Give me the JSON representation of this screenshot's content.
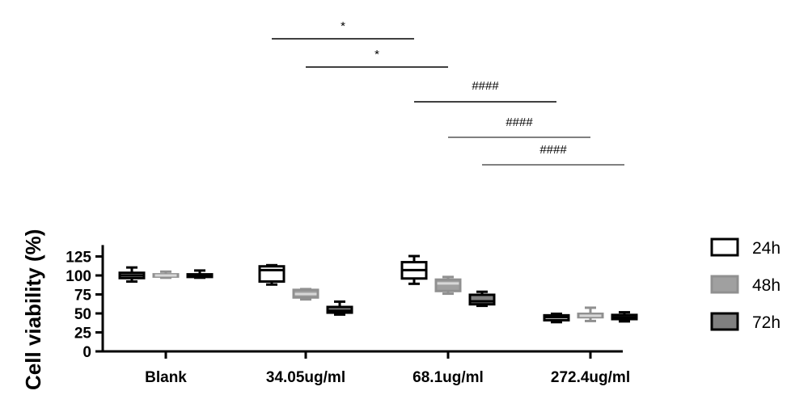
{
  "chart_data": {
    "type": "box",
    "title": "",
    "xlabel": "",
    "ylabel": "Cell viability (%)",
    "ylim": [
      0,
      140
    ],
    "yticks": [
      "0",
      "25",
      "50",
      "75",
      "100",
      "125"
    ],
    "categories": [
      "Blank",
      "34.05ug/ml",
      "68.1ug/ml",
      "272.4ug/ml"
    ],
    "legend_position": "right",
    "series": [
      {
        "name": "24h",
        "fill": "#ffffff",
        "stroke": "#000000",
        "median_color": "#000000",
        "boxes": [
          {
            "min": 92,
            "q1": 96.5,
            "median": 100,
            "q3": 103.5,
            "max": 110.5
          },
          {
            "min": 88,
            "q1": 92,
            "median": 107,
            "q3": 112,
            "max": 113.5
          },
          {
            "min": 89,
            "q1": 96,
            "median": 107,
            "q3": 117.5,
            "max": 125.5
          },
          {
            "min": 38.5,
            "q1": 41,
            "median": 45,
            "q3": 47.5,
            "max": 49.5
          }
        ]
      },
      {
        "name": "48h",
        "fill": "#a0a0a0",
        "stroke": "#909090",
        "median_color": "#d8d8d8",
        "boxes": [
          {
            "min": 97,
            "q1": 98.5,
            "median": 100,
            "q3": 101.5,
            "max": 105
          },
          {
            "min": 68.5,
            "q1": 71,
            "median": 75.5,
            "q3": 81,
            "max": 82
          },
          {
            "min": 76,
            "q1": 79.5,
            "median": 89.5,
            "q3": 94.5,
            "max": 98
          },
          {
            "min": 40,
            "q1": 45,
            "median": 47,
            "q3": 49.5,
            "max": 57.5
          }
        ]
      },
      {
        "name": "72h",
        "fill": "#808080",
        "stroke": "#000000",
        "median_color": "#000000",
        "boxes": [
          {
            "min": 97,
            "q1": 98,
            "median": 100,
            "q3": 101.5,
            "max": 106.5
          },
          {
            "min": 48.5,
            "q1": 51,
            "median": 53.5,
            "q3": 58.5,
            "max": 65.5
          },
          {
            "min": 60,
            "q1": 62,
            "median": 66,
            "q3": 74.5,
            "max": 78.5
          },
          {
            "min": 39.5,
            "q1": 42.5,
            "median": 45,
            "q3": 48,
            "max": 51.5
          }
        ]
      }
    ],
    "significance": [
      {
        "label": "*",
        "from": {
          "category": 1,
          "series": 0
        },
        "to": {
          "category": 2,
          "series": 0
        }
      },
      {
        "label": "*",
        "from": {
          "category": 1,
          "series": 1
        },
        "to": {
          "category": 2,
          "series": 1
        }
      },
      {
        "label": "####",
        "from": {
          "category": 2,
          "series": 0
        },
        "to": {
          "category": 3,
          "series": 0
        }
      },
      {
        "label": "####",
        "from": {
          "category": 2,
          "series": 1
        },
        "to": {
          "category": 3,
          "series": 1
        }
      },
      {
        "label": "####",
        "from": {
          "category": 2,
          "series": 2
        },
        "to": {
          "category": 3,
          "series": 2
        }
      }
    ]
  }
}
